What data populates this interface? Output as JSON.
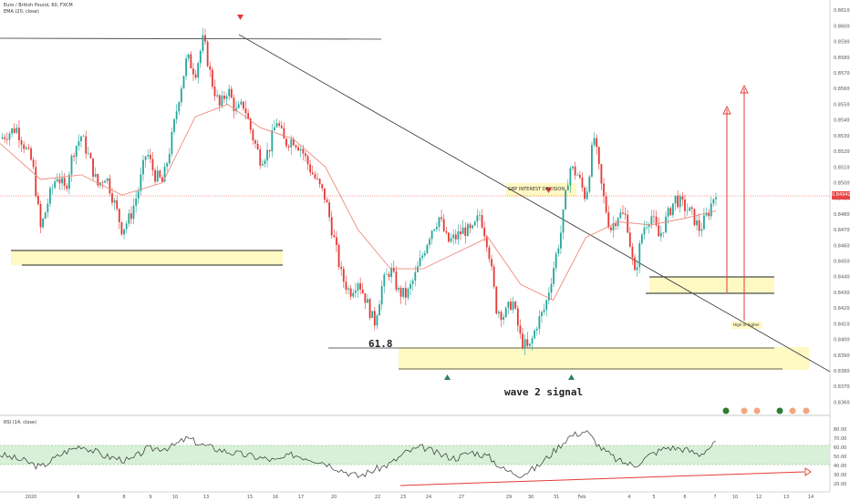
{
  "header": {
    "symbol_line": "Euro / British Pound, 60, FXCM",
    "ema_line": "EMA (20, close)",
    "rsi_line": "RSI (14, close)"
  },
  "annotations": {
    "fib_label": "61.8",
    "wave_label": "wave 2 signal",
    "decision_box_label": "GBP INTEREST DECISION",
    "target_label": "High or higher",
    "current_price": "0.84942"
  },
  "colors": {
    "up": "#26a69a",
    "down": "#e53935",
    "ema": "#ef8a7e",
    "zone": "#fff9c4",
    "rsi_band": "#d7f0d7",
    "arrow": "#e53935"
  },
  "chart_data": [
    {
      "type": "candlestick",
      "title": "Euro / British Pound, 60, FXCM",
      "price_axis_ticks": [
        "0.86100",
        "0.86000",
        "0.85900",
        "0.85800",
        "0.85700",
        "0.85600",
        "0.85500",
        "0.85400",
        "0.85300",
        "0.85200",
        "0.85100",
        "0.85000",
        "0.84900",
        "0.84800",
        "0.84700",
        "0.84600",
        "0.84500",
        "0.84400",
        "0.84300",
        "0.84200",
        "0.84100",
        "0.84000",
        "0.83900",
        "0.83800",
        "0.83700",
        "0.83600"
      ],
      "ylim": [
        0.8355,
        0.8613
      ],
      "time_axis_ticks": [
        "2020",
        "6",
        "8",
        "9",
        "10",
        "13",
        "15",
        "16",
        "17",
        "20",
        "22",
        "23",
        "24",
        "27",
        "29",
        "30",
        "31",
        "Feb",
        "4",
        "5",
        "6",
        "7",
        "10",
        "12",
        "13",
        "14"
      ],
      "close_path": [
        [
          0,
          0.8528
        ],
        [
          2,
          0.8535
        ],
        [
          4,
          0.8512
        ],
        [
          5,
          0.847
        ],
        [
          6,
          0.849
        ],
        [
          7,
          0.8505
        ],
        [
          8,
          0.8495
        ],
        [
          9,
          0.852
        ],
        [
          10,
          0.853
        ],
        [
          11,
          0.8515
        ],
        [
          12,
          0.8498
        ],
        [
          13,
          0.8505
        ],
        [
          14,
          0.8488
        ],
        [
          15,
          0.847
        ],
        [
          16,
          0.8478
        ],
        [
          17,
          0.8495
        ],
        [
          18,
          0.852
        ],
        [
          19,
          0.8505
        ],
        [
          20,
          0.85
        ],
        [
          21,
          0.8525
        ],
        [
          22,
          0.8555
        ],
        [
          23,
          0.858
        ],
        [
          24,
          0.857
        ],
        [
          25,
          0.8592
        ],
        [
          26,
          0.8565
        ],
        [
          27,
          0.8548
        ],
        [
          28,
          0.856
        ],
        [
          29,
          0.8545
        ],
        [
          30,
          0.855
        ],
        [
          31,
          0.853
        ],
        [
          32,
          0.8515
        ],
        [
          33,
          0.852
        ],
        [
          34,
          0.854
        ],
        [
          35,
          0.8525
        ],
        [
          36,
          0.8528
        ],
        [
          37,
          0.8522
        ],
        [
          38,
          0.851
        ],
        [
          39,
          0.85
        ],
        [
          40,
          0.849
        ],
        [
          41,
          0.8465
        ],
        [
          42,
          0.844
        ],
        [
          43,
          0.843
        ],
        [
          44,
          0.8438
        ],
        [
          45,
          0.8425
        ],
        [
          46,
          0.841
        ],
        [
          47,
          0.8435
        ],
        [
          48,
          0.8445
        ],
        [
          49,
          0.843
        ],
        [
          50,
          0.8428
        ],
        [
          51,
          0.844
        ],
        [
          52,
          0.8455
        ],
        [
          53,
          0.847
        ],
        [
          54,
          0.8478
        ],
        [
          55,
          0.8462
        ],
        [
          56,
          0.8465
        ],
        [
          57,
          0.847
        ],
        [
          58,
          0.8468
        ],
        [
          59,
          0.848
        ],
        [
          60,
          0.846
        ],
        [
          61,
          0.842
        ],
        [
          62,
          0.8415
        ],
        [
          63,
          0.8425
        ],
        [
          64,
          0.84
        ],
        [
          65,
          0.8393
        ],
        [
          66,
          0.841
        ],
        [
          67,
          0.842
        ],
        [
          68,
          0.8445
        ],
        [
          69,
          0.847
        ],
        [
          70,
          0.851
        ],
        [
          71,
          0.8505
        ],
        [
          72,
          0.849
        ],
        [
          73,
          0.853
        ],
        [
          74,
          0.8495
        ],
        [
          75,
          0.847
        ],
        [
          76,
          0.848
        ],
        [
          77,
          0.8478
        ],
        [
          78,
          0.844
        ],
        [
          79,
          0.847
        ],
        [
          80,
          0.848
        ],
        [
          81,
          0.8465
        ],
        [
          82,
          0.8478
        ],
        [
          83,
          0.849
        ],
        [
          84,
          0.8485
        ],
        [
          85,
          0.848
        ],
        [
          86,
          0.847
        ],
        [
          87,
          0.848
        ],
        [
          88,
          0.8495
        ]
      ],
      "ema_20": [
        [
          0,
          0.8525
        ],
        [
          5,
          0.8502
        ],
        [
          10,
          0.8505
        ],
        [
          15,
          0.8492
        ],
        [
          20,
          0.85
        ],
        [
          24,
          0.8542
        ],
        [
          28,
          0.855
        ],
        [
          32,
          0.8535
        ],
        [
          36,
          0.8528
        ],
        [
          40,
          0.851
        ],
        [
          44,
          0.847
        ],
        [
          48,
          0.8445
        ],
        [
          52,
          0.8445
        ],
        [
          56,
          0.8455
        ],
        [
          60,
          0.8465
        ],
        [
          64,
          0.8435
        ],
        [
          68,
          0.8425
        ],
        [
          72,
          0.8465
        ],
        [
          76,
          0.8475
        ],
        [
          80,
          0.8473
        ],
        [
          84,
          0.8477
        ],
        [
          88,
          0.8482
        ]
      ]
    },
    {
      "type": "line",
      "title": "RSI (14, close)",
      "rsi_axis_ticks": [
        "80.00",
        "70.00",
        "60.00",
        "50.00",
        "40.00",
        "30.00",
        "20.00"
      ],
      "ylim": [
        15,
        85
      ],
      "band": [
        40,
        60
      ],
      "values": [
        [
          0,
          52
        ],
        [
          3,
          45
        ],
        [
          5,
          38
        ],
        [
          8,
          55
        ],
        [
          10,
          62
        ],
        [
          13,
          50
        ],
        [
          16,
          45
        ],
        [
          18,
          58
        ],
        [
          21,
          60
        ],
        [
          23,
          70
        ],
        [
          25,
          62
        ],
        [
          28,
          55
        ],
        [
          31,
          50
        ],
        [
          34,
          45
        ],
        [
          36,
          52
        ],
        [
          38,
          48
        ],
        [
          40,
          43
        ],
        [
          42,
          35
        ],
        [
          44,
          28
        ],
        [
          46,
          35
        ],
        [
          48,
          42
        ],
        [
          50,
          55
        ],
        [
          52,
          60
        ],
        [
          54,
          52
        ],
        [
          56,
          48
        ],
        [
          58,
          55
        ],
        [
          60,
          50
        ],
        [
          62,
          35
        ],
        [
          64,
          30
        ],
        [
          66,
          38
        ],
        [
          68,
          55
        ],
        [
          70,
          72
        ],
        [
          72,
          78
        ],
        [
          74,
          58
        ],
        [
          76,
          45
        ],
        [
          78,
          40
        ],
        [
          80,
          52
        ],
        [
          82,
          60
        ],
        [
          84,
          58
        ],
        [
          86,
          52
        ],
        [
          88,
          65
        ]
      ]
    }
  ]
}
